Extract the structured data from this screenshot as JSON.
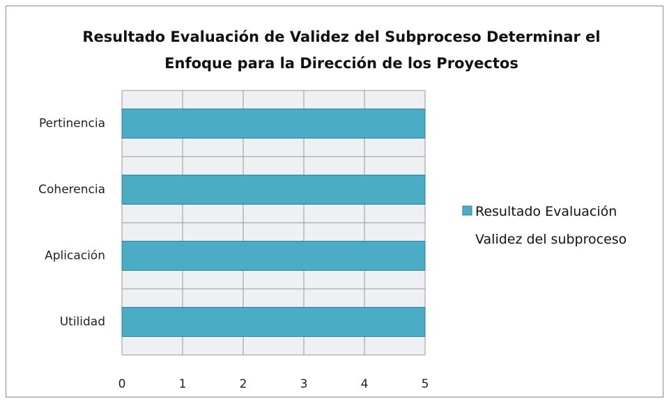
{
  "chart_data": {
    "type": "bar",
    "title": "Resultado Evaluación de Validez del Subproceso Determinar el Enfoque para la Dirección de los Proyectos",
    "categories": [
      "Pertinencia",
      "Coherencia",
      "Aplicación",
      "Utilidad"
    ],
    "series": [
      {
        "name": "Resultado Evaluación Validez del subproceso",
        "color": "#4bacc6",
        "values": [
          5,
          5,
          5,
          5
        ]
      }
    ],
    "xlim": [
      0,
      5
    ],
    "xticks": [
      0,
      1,
      2,
      3,
      4,
      5
    ],
    "grid": true,
    "legend": "right"
  }
}
